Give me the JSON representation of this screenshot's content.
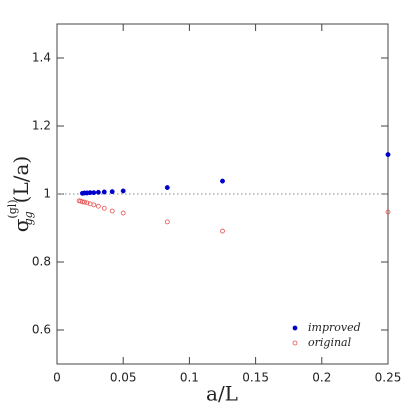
{
  "chart_data": {
    "type": "scatter",
    "xlabel": "a/L",
    "ylabel": {
      "symbol": "σ",
      "sub": "gg",
      "sup": "(gl)",
      "arg": "(L/a)"
    },
    "xlim": [
      0,
      0.25
    ],
    "ylim": [
      0.5,
      1.5
    ],
    "xticks": [
      0,
      0.05,
      0.1,
      0.15,
      0.2,
      0.25
    ],
    "yticks": [
      0.6,
      0.8,
      1,
      1.2,
      1.4
    ],
    "reference_line": 1,
    "legend": "lower right",
    "series": [
      {
        "name": "improved",
        "color": "#0000cc",
        "filled": true,
        "x": [
          0.0192,
          0.0208,
          0.0227,
          0.025,
          0.0278,
          0.03125,
          0.0357,
          0.0417,
          0.05,
          0.0833,
          0.125,
          0.25
        ],
        "values": [
          1.002,
          1.003,
          1.003,
          1.004,
          1.004,
          1.005,
          1.006,
          1.007,
          1.009,
          1.019,
          1.038,
          1.116
        ]
      },
      {
        "name": "original",
        "color": "#e85050",
        "filled": false,
        "x": [
          0.0167,
          0.0179,
          0.0192,
          0.0208,
          0.0227,
          0.025,
          0.0278,
          0.03125,
          0.0357,
          0.0417,
          0.05,
          0.0833,
          0.125,
          0.25
        ],
        "values": [
          0.98,
          0.979,
          0.977,
          0.976,
          0.974,
          0.971,
          0.968,
          0.964,
          0.958,
          0.95,
          0.944,
          0.918,
          0.891,
          0.947
        ]
      }
    ]
  }
}
